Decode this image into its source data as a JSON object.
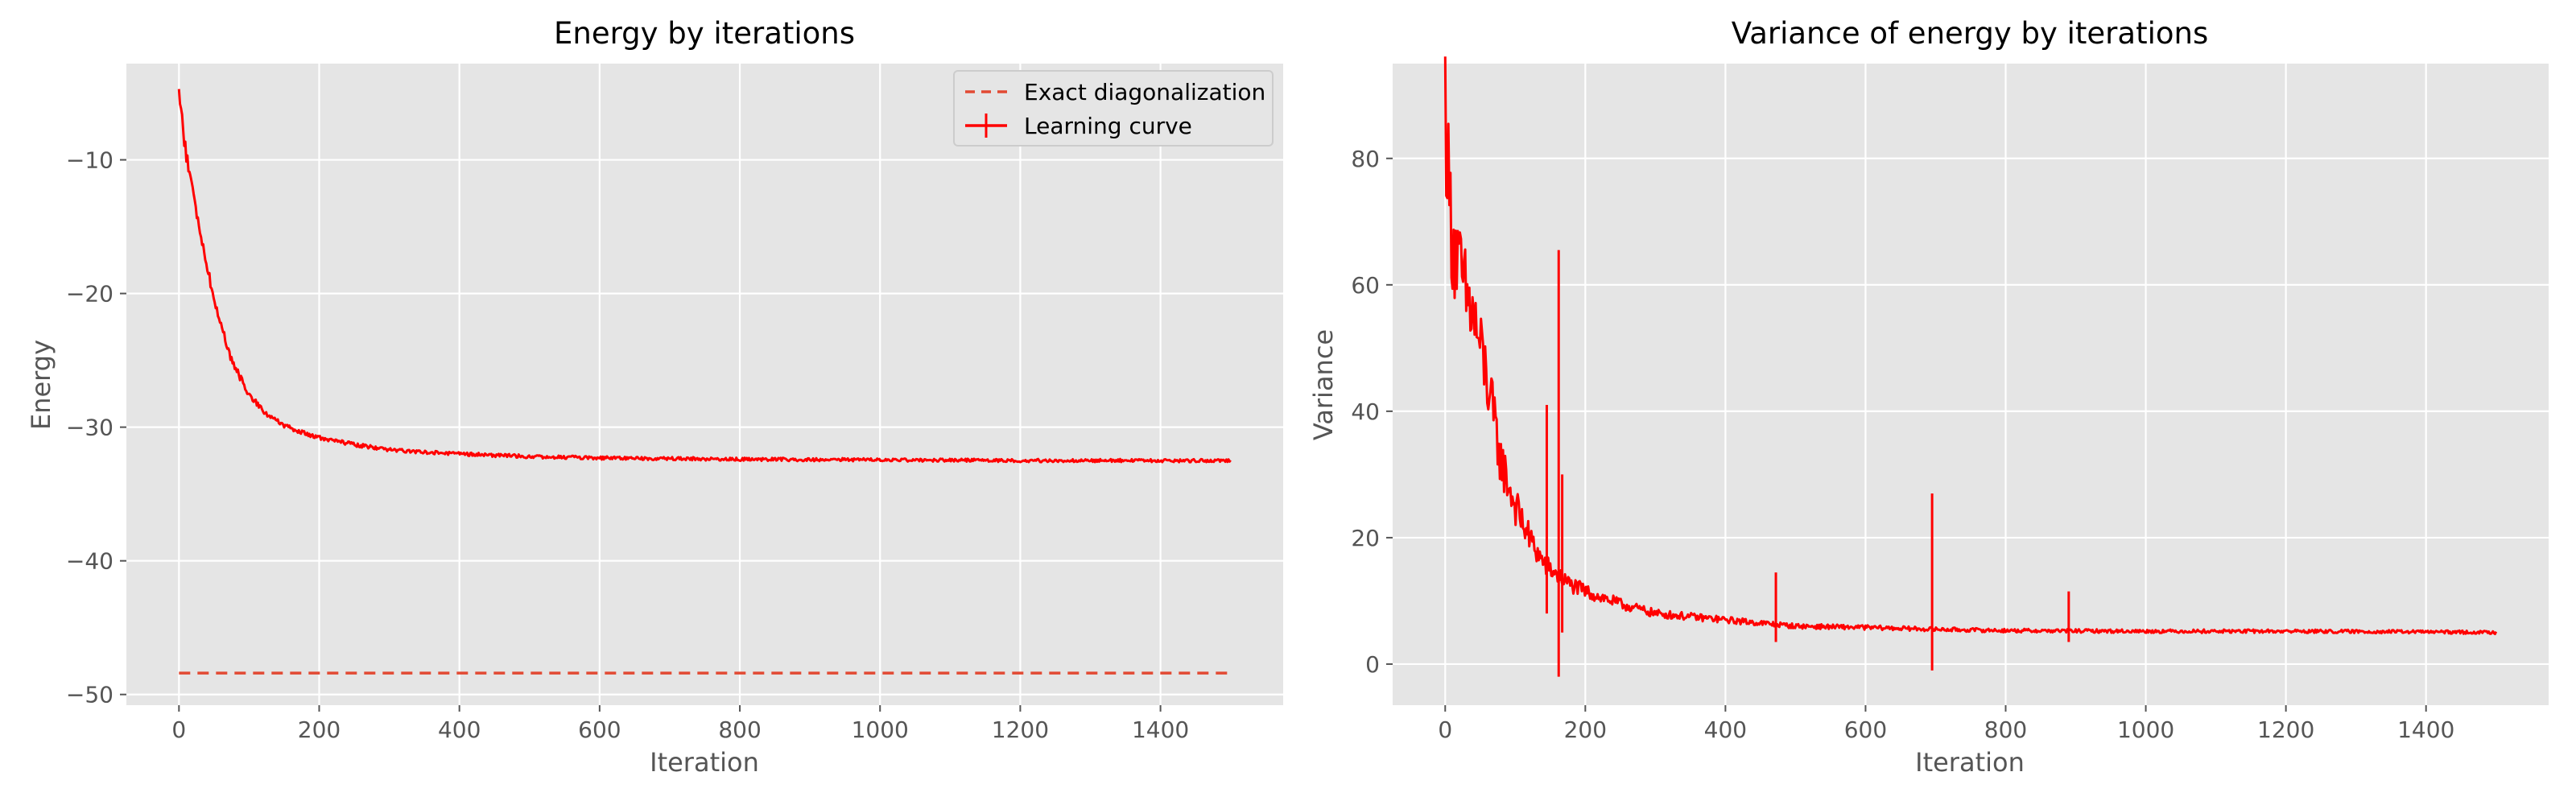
{
  "colors": {
    "plot_bg": "#E5E5E5",
    "grid": "#FFFFFF",
    "tick_text": "#555555",
    "label_text": "#555555",
    "title_text": "#000000",
    "curve": "#FF0000",
    "exact_line": "#E24A33"
  },
  "chart_data": [
    {
      "type": "line",
      "title": "Energy by iterations",
      "xlabel": "Iteration",
      "ylabel": "Energy",
      "xlim": [
        -75,
        1575
      ],
      "ylim": [
        -50.8,
        -2.8
      ],
      "xticks": [
        0,
        200,
        400,
        600,
        800,
        1000,
        1200,
        1400
      ],
      "yticks": [
        -50,
        -40,
        -30,
        -20,
        -10
      ],
      "xtick_labels": [
        "0",
        "200",
        "400",
        "600",
        "800",
        "1000",
        "1200",
        "1400"
      ],
      "ytick_labels": [
        "−50",
        "−40",
        "−30",
        "−20",
        "−10"
      ],
      "grid": true,
      "legend_position": "top-right",
      "series": [
        {
          "name": "Exact diagonalization",
          "style": "dashed",
          "x": [
            0,
            1500
          ],
          "y": [
            -48.4,
            -48.4
          ]
        },
        {
          "name": "Learning curve",
          "style": "solid",
          "x": [
            0,
            10,
            25,
            50,
            75,
            100,
            125,
            150,
            175,
            200,
            250,
            300,
            400,
            500,
            600,
            800,
            1000,
            1200,
            1400,
            1500
          ],
          "y": [
            -5.0,
            -9.5,
            -14.0,
            -20.5,
            -25.0,
            -27.6,
            -29.0,
            -29.9,
            -30.4,
            -30.8,
            -31.3,
            -31.7,
            -32.0,
            -32.2,
            -32.3,
            -32.4,
            -32.45,
            -32.5,
            -32.5,
            -32.5
          ]
        }
      ]
    },
    {
      "type": "line",
      "title": "Variance of energy by iterations",
      "xlabel": "Iteration",
      "ylabel": "Variance",
      "xlim": [
        -75,
        1575
      ],
      "ylim": [
        -6.5,
        95
      ],
      "xticks": [
        0,
        200,
        400,
        600,
        800,
        1000,
        1200,
        1400
      ],
      "yticks": [
        0,
        20,
        40,
        60,
        80
      ],
      "xtick_labels": [
        "0",
        "200",
        "400",
        "600",
        "800",
        "1000",
        "1200",
        "1400"
      ],
      "ytick_labels": [
        "0",
        "20",
        "40",
        "60",
        "80"
      ],
      "grid": true,
      "series": [
        {
          "style": "solid",
          "x": [
            0,
            5,
            10,
            20,
            30,
            40,
            50,
            60,
            70,
            80,
            100,
            120,
            140,
            160,
            180,
            200,
            250,
            300,
            400,
            500,
            600,
            700,
            800,
            1000,
            1200,
            1400,
            1500
          ],
          "y": [
            90,
            75,
            68,
            62,
            58,
            55,
            50,
            45,
            38,
            32,
            25,
            20,
            16,
            14,
            12.5,
            11.5,
            9.5,
            8.0,
            7.0,
            6.0,
            5.8,
            5.5,
            5.3,
            5.2,
            5.2,
            5.1,
            5.0
          ],
          "spikes": [
            {
              "x": 145,
              "low": 8,
              "high": 41
            },
            {
              "x": 162,
              "low": -2,
              "high": 65.5
            },
            {
              "x": 167,
              "low": 5,
              "high": 30
            },
            {
              "x": 472,
              "low": 3.5,
              "high": 14.5
            },
            {
              "x": 695,
              "low": -1,
              "high": 27
            },
            {
              "x": 890,
              "low": 3.5,
              "high": 11.5
            }
          ]
        }
      ]
    }
  ]
}
